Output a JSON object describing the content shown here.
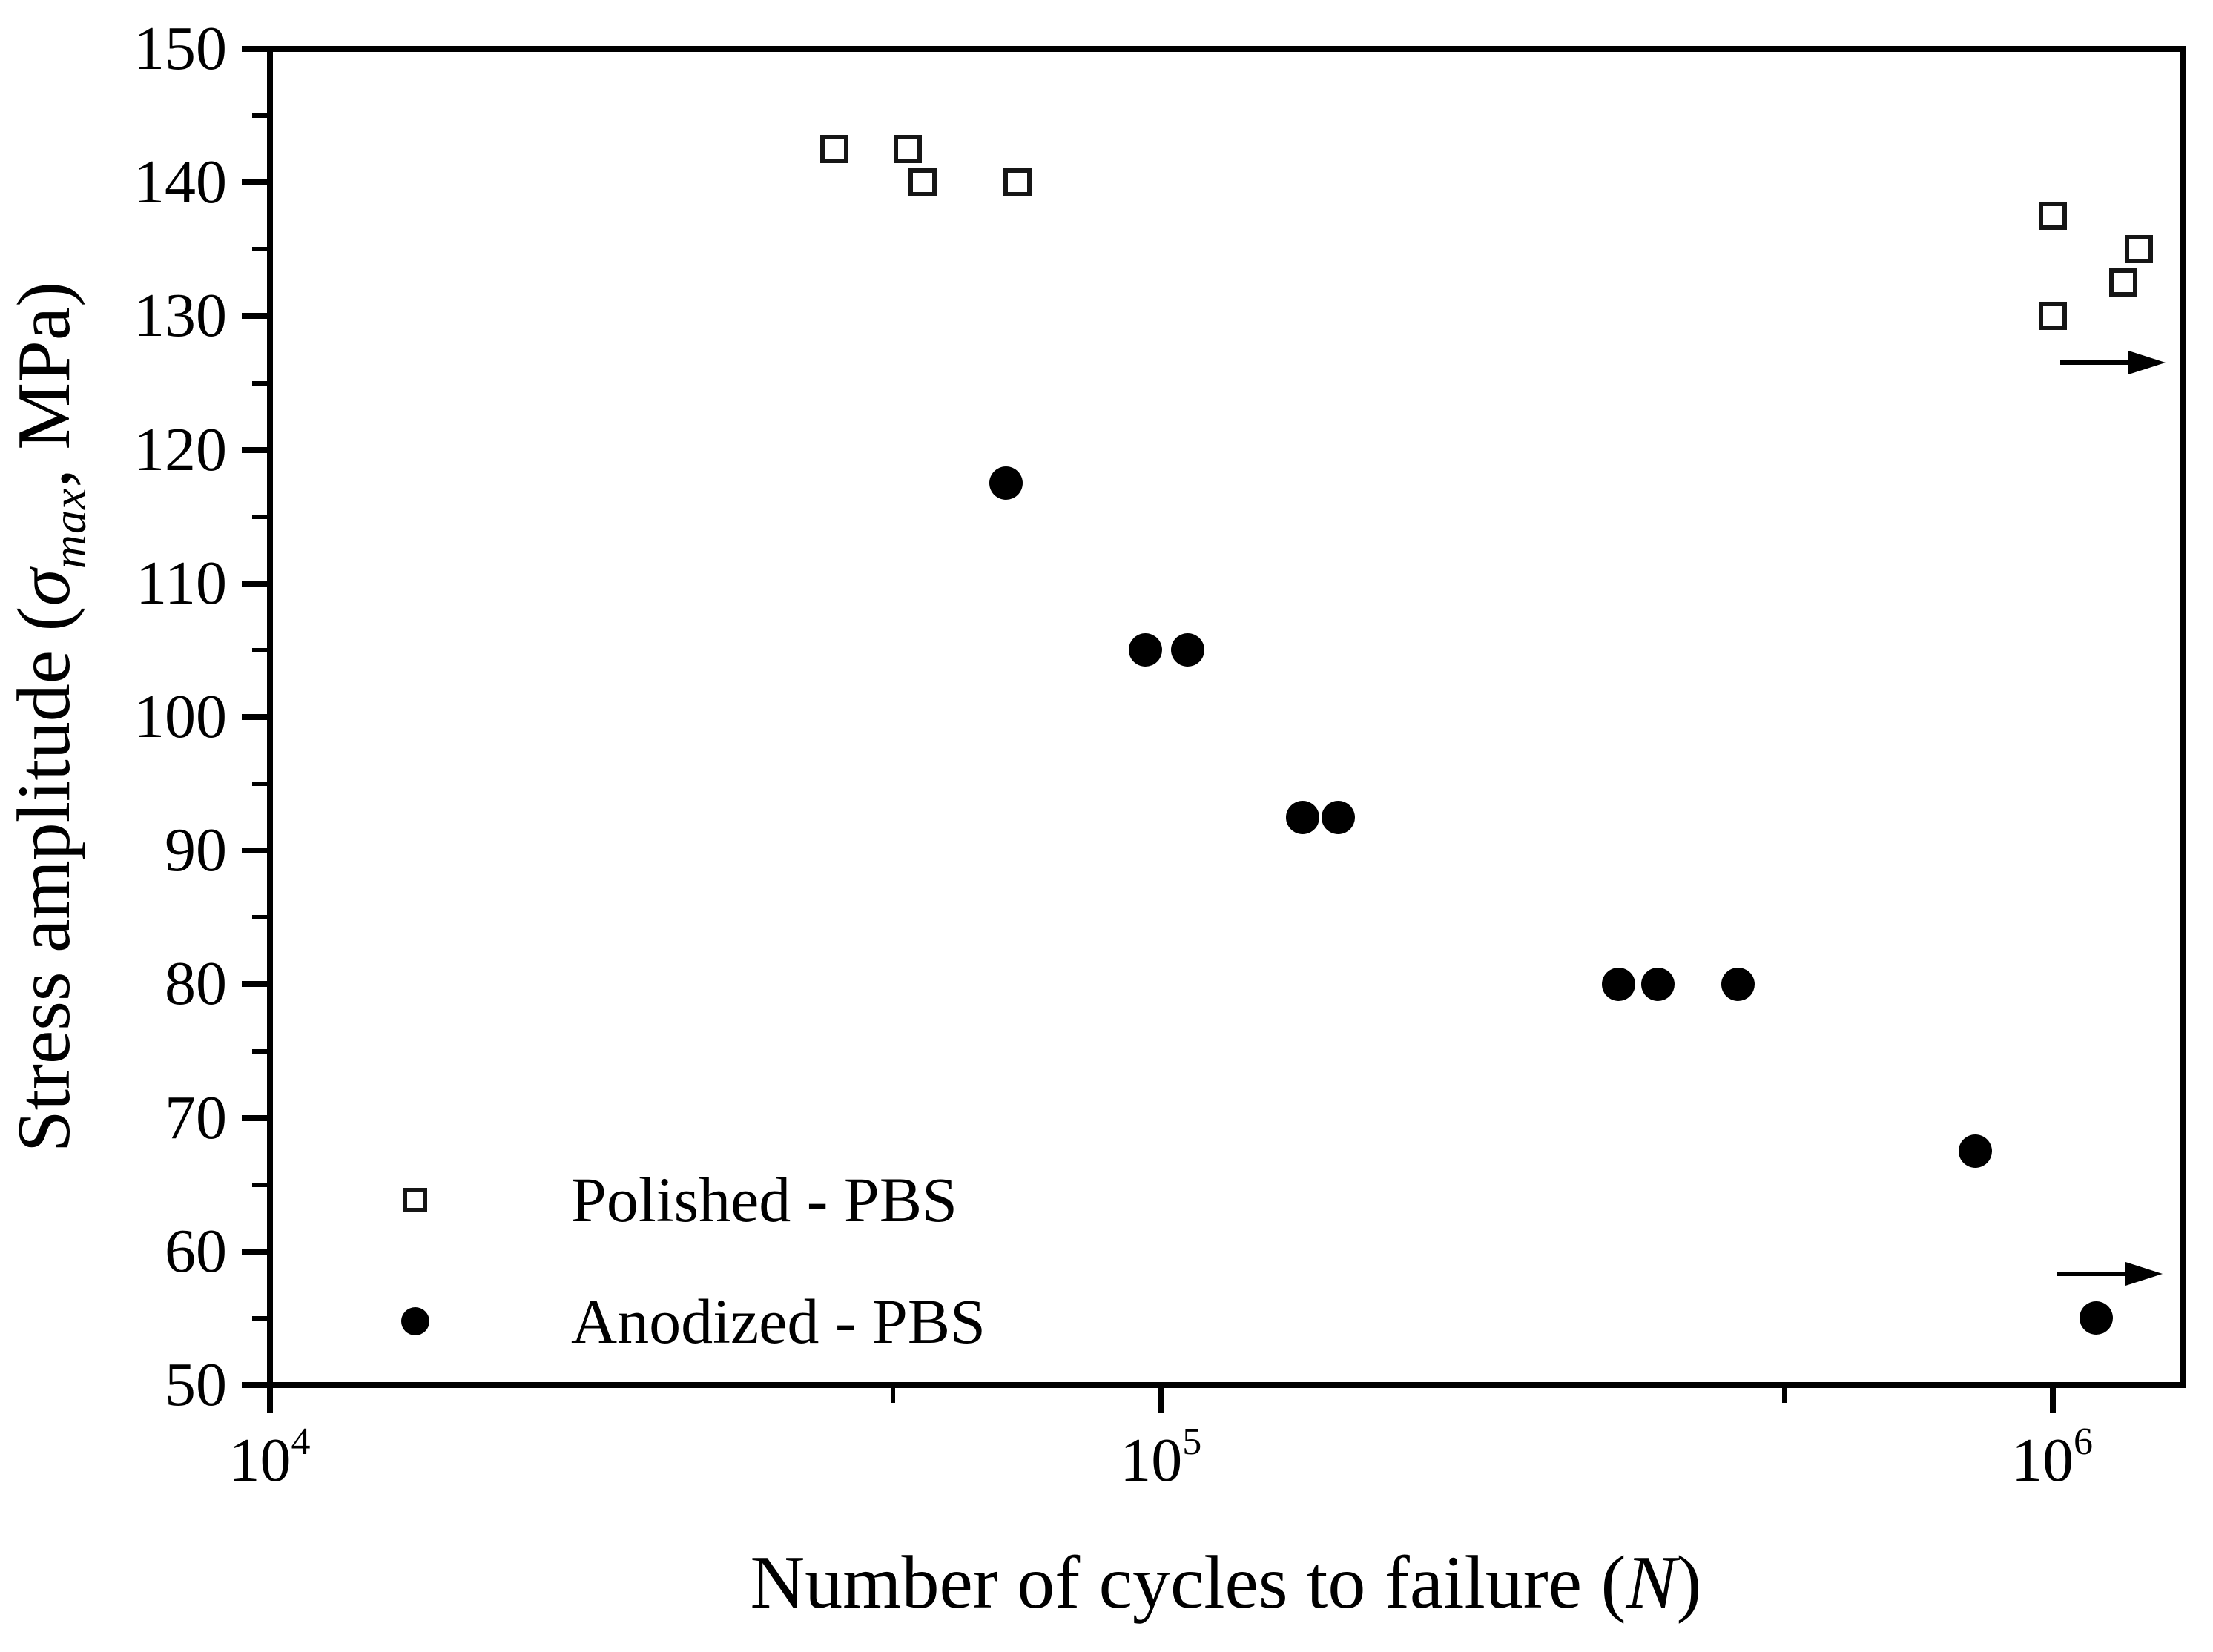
{
  "colors": {
    "foreground": "#000000",
    "background": "#ffffff"
  },
  "axis_titles": {
    "x_main": "Number of cycles to failure (",
    "x_var": "N",
    "x_close": ")",
    "y_pre": "Stress amplitude (",
    "y_sigma": "σ",
    "y_sub": "max",
    "y_post": ", MPa)"
  },
  "legend": {
    "items": [
      {
        "label": "Polished - PBS",
        "marker": "open-square"
      },
      {
        "label": "Anodized - PBS",
        "marker": "filled-circle"
      }
    ]
  },
  "chart_data": {
    "type": "scatter",
    "title": "",
    "xlabel": "Number of cycles to failure (N)",
    "ylabel": "Stress amplitude (σmax, MPa)",
    "x_scale": "log",
    "xlim_log10": [
      4,
      6.146
    ],
    "ylim": [
      50,
      150
    ],
    "grid": false,
    "legend_position": "inside-lower-left",
    "x_major_ticks": [
      {
        "exponent": 4,
        "value": 10000,
        "label_base": "10",
        "label_exp": "4"
      },
      {
        "exponent": 5,
        "value": 100000,
        "label_base": "10",
        "label_exp": "5"
      },
      {
        "exponent": 6,
        "value": 1000000,
        "label_base": "10",
        "label_exp": "6"
      }
    ],
    "x_minor_tick_values": [
      50000,
      500000
    ],
    "y_major_tick_values": [
      150,
      140,
      130,
      120,
      110,
      100,
      90,
      80,
      70,
      60,
      50
    ],
    "y_minor_tick_values": [
      145,
      135,
      125,
      115,
      105,
      95,
      85,
      75,
      65,
      55
    ],
    "series": [
      {
        "name": "Polished - PBS",
        "marker": "open-square",
        "points": [
          {
            "N": 43000,
            "MPa": 142.5
          },
          {
            "N": 52000,
            "MPa": 142.5
          },
          {
            "N": 54000,
            "MPa": 140
          },
          {
            "N": 69000,
            "MPa": 140
          },
          {
            "N": 1000000,
            "MPa": 137.5
          },
          {
            "N": 1250000,
            "MPa": 135
          },
          {
            "N": 1200000,
            "MPa": 132.5
          },
          {
            "N": 1000000,
            "MPa": 130
          }
        ]
      },
      {
        "name": "Anodized - PBS",
        "marker": "filled-circle",
        "points": [
          {
            "N": 67000,
            "MPa": 117.5
          },
          {
            "N": 96000,
            "MPa": 105
          },
          {
            "N": 107000,
            "MPa": 105
          },
          {
            "N": 144000,
            "MPa": 92.5
          },
          {
            "N": 158000,
            "MPa": 92.5
          },
          {
            "N": 326000,
            "MPa": 80
          },
          {
            "N": 361000,
            "MPa": 80
          },
          {
            "N": 444000,
            "MPa": 80
          },
          {
            "N": 820000,
            "MPa": 67.5
          },
          {
            "N": 1120000,
            "MPa": 55
          }
        ]
      }
    ],
    "runout_arrows": [
      {
        "MPa": 126.5,
        "N_from": 1020000,
        "N_to": 1340000
      },
      {
        "MPa": 58.3,
        "N_from": 1010000,
        "N_to": 1330000
      }
    ]
  }
}
